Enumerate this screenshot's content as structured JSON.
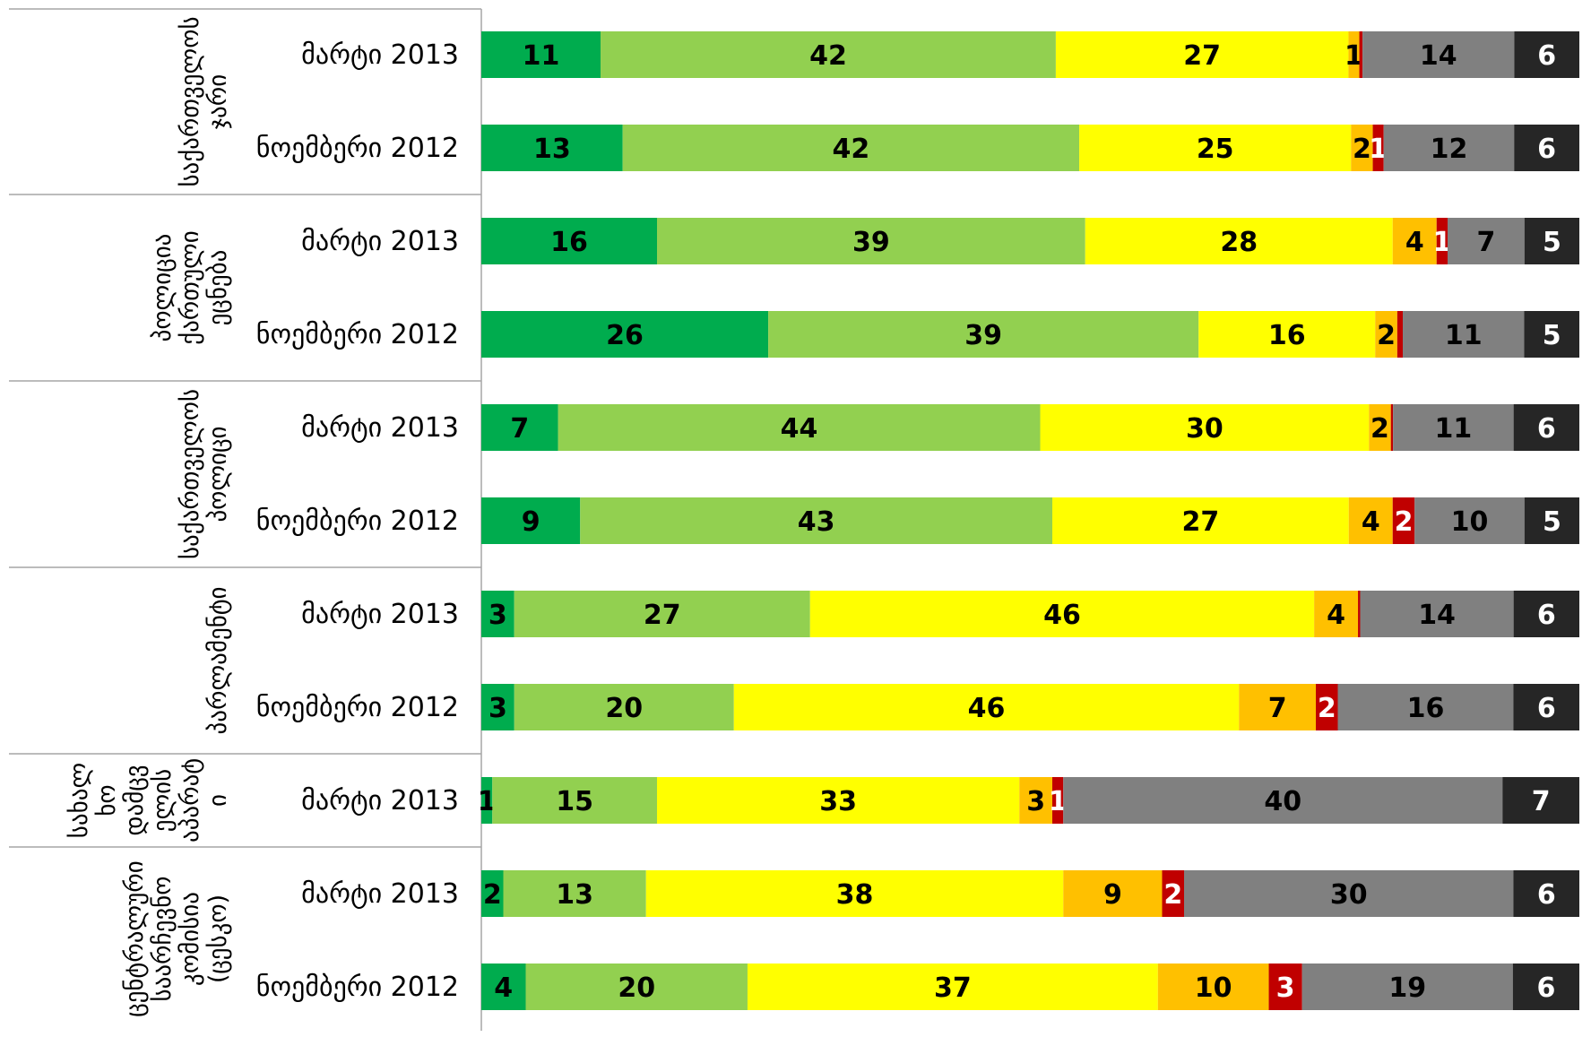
{
  "chart_data": {
    "type": "bar",
    "orientation": "horizontal",
    "stacked": true,
    "percent": true,
    "xlim": [
      0,
      100
    ],
    "grid": false,
    "legend": "none",
    "segment_colors": [
      "#00AC4E",
      "#92D050",
      "#FFFF00",
      "#FFC000",
      "#C00000",
      "#808080",
      "#262626"
    ],
    "segment_label_colors": [
      "#000000",
      "#000000",
      "#000000",
      "#000000",
      "#FFFFFF",
      "#000000",
      "#FFFFFF"
    ],
    "groups": [
      {
        "label_lines": [
          "საქართველოს",
          "ჯარი"
        ],
        "rows": [
          0,
          1
        ]
      },
      {
        "label_lines": [
          "პოლიცია",
          "ქართული",
          "ეცნება"
        ],
        "rows": [
          2,
          3
        ]
      },
      {
        "label_lines": [
          "საქართველოს",
          "პოლიცი"
        ],
        "rows": [
          4,
          5
        ]
      },
      {
        "label_lines": [
          "პარლამენტი"
        ],
        "rows": [
          6,
          7
        ]
      },
      {
        "label_lines": [
          "სახალ",
          "ხო",
          "დამცვ",
          "ელის",
          "აპარატ",
          "ი"
        ],
        "rows": [
          8
        ]
      },
      {
        "label_lines": [
          "ცენტრალური",
          "საარჩევნო",
          "კომისია",
          "(ცესკო)"
        ],
        "rows": [
          9,
          10
        ]
      }
    ],
    "rows": [
      {
        "label": "მარტი 2013",
        "values": [
          11,
          42,
          27,
          1,
          0.3,
          14,
          6
        ]
      },
      {
        "label": "ნოემბერი 2012",
        "values": [
          13,
          42,
          25,
          2,
          1,
          12,
          6
        ]
      },
      {
        "label": "მარტი 2013",
        "values": [
          16,
          39,
          28,
          4,
          1,
          7,
          5
        ]
      },
      {
        "label": "ნოემბერი 2012",
        "values": [
          26,
          39,
          16,
          2,
          0.5,
          11,
          5
        ]
      },
      {
        "label": "მარტი 2013",
        "values": [
          7,
          44,
          30,
          2,
          0.2,
          11,
          6
        ]
      },
      {
        "label": "ნოემბერი 2012",
        "values": [
          9,
          43,
          27,
          4,
          2,
          10,
          5
        ]
      },
      {
        "label": "მარტი 2013",
        "values": [
          3,
          27,
          46,
          4,
          0.2,
          14,
          6
        ]
      },
      {
        "label": "ნოემბერი 2012",
        "values": [
          3,
          20,
          46,
          7,
          2,
          16,
          6
        ]
      },
      {
        "label": "მარტი 2013",
        "values": [
          1,
          15,
          33,
          3,
          1,
          40,
          7
        ]
      },
      {
        "label": "მარტი 2013",
        "values": [
          2,
          13,
          38,
          9,
          2,
          30,
          6
        ]
      },
      {
        "label": "ნოემბერი 2012",
        "values": [
          4,
          20,
          37,
          10,
          3,
          19,
          6
        ]
      }
    ]
  }
}
